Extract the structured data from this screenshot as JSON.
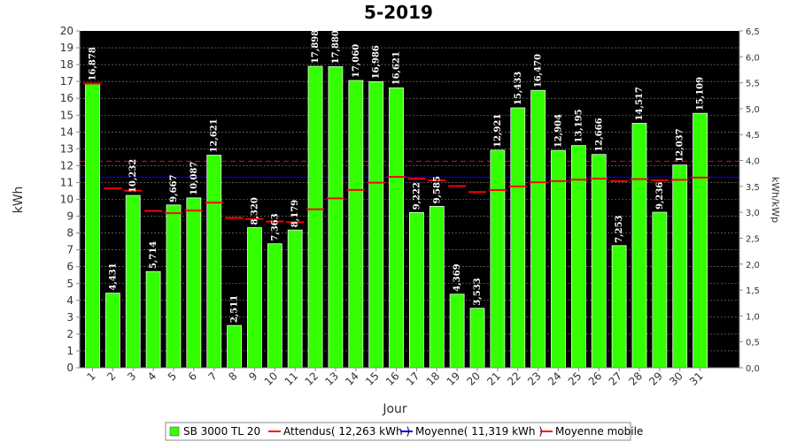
{
  "chart_data": {
    "type": "bar",
    "title": "5-2019",
    "xlabel": "Jour",
    "ylabel": "kWh",
    "y2label": "kWh/kWp",
    "ylim": [
      0,
      20
    ],
    "y2lim": [
      0,
      6.5
    ],
    "yticks": [
      "0",
      "1",
      "2",
      "3",
      "4",
      "5",
      "6",
      "7",
      "8",
      "9",
      "10",
      "11",
      "12",
      "13",
      "14",
      "15",
      "16",
      "17",
      "18",
      "19",
      "20"
    ],
    "y2ticks": [
      "0,0",
      "0,5",
      "1,0",
      "1,5",
      "2,0",
      "2,5",
      "3,0",
      "3,5",
      "4,0",
      "4,5",
      "5,0",
      "5,5",
      "6,0",
      "6,5"
    ],
    "grid": true,
    "legend_position": "bottom",
    "categories": [
      "1",
      "2",
      "3",
      "4",
      "5",
      "6",
      "7",
      "8",
      "9",
      "10",
      "11",
      "12",
      "13",
      "14",
      "15",
      "16",
      "17",
      "18",
      "19",
      "20",
      "21",
      "22",
      "23",
      "24",
      "25",
      "26",
      "27",
      "28",
      "29",
      "30",
      "31"
    ],
    "series": [
      {
        "name": "SB 3000 TL 20",
        "color": "#33ff00",
        "values": [
          16.878,
          4.431,
          10.232,
          5.714,
          9.667,
          10.087,
          12.621,
          2.511,
          8.32,
          7.363,
          8.179,
          17.898,
          17.88,
          17.06,
          16.986,
          16.621,
          9.222,
          9.585,
          4.369,
          3.533,
          12.921,
          15.433,
          16.47,
          12.904,
          13.195,
          12.666,
          7.253,
          14.517,
          9.236,
          12.037,
          15.109
        ],
        "labels": [
          "16,878",
          "4,431",
          "10,232",
          "5,714",
          "9,667",
          "10,087",
          "12,621",
          "2,511",
          "8,320",
          "7,363",
          "8,179",
          "17,898",
          "17,880",
          "17,060",
          "16,986",
          "16,621",
          "9,222",
          "9,585",
          "4,369",
          "3,533",
          "12,921",
          "15,433",
          "16,470",
          "12,904",
          "13,195",
          "12,666",
          "7,253",
          "14,517",
          "9,236",
          "12,037",
          "15,109"
        ]
      },
      {
        "name": "Moyenne mobile",
        "color": "#ff0000",
        "values": [
          16.878,
          10.65,
          10.51,
          9.31,
          9.18,
          9.33,
          9.8,
          8.89,
          8.83,
          8.68,
          8.64,
          9.41,
          10.06,
          10.56,
          10.99,
          11.34,
          11.22,
          11.13,
          10.79,
          10.43,
          10.55,
          10.77,
          11.01,
          11.08,
          11.17,
          11.23,
          11.08,
          11.2,
          11.13,
          11.16,
          11.29
        ]
      }
    ],
    "reference_lines": [
      {
        "name": "Attendus( 12,263 kWh )",
        "value": 12.263,
        "color": "#ff0000",
        "style": "dashed"
      },
      {
        "name": "Moyenne( 11,319 kWh )",
        "value": 11.319,
        "color": "#0000ff",
        "style": "solid"
      }
    ]
  }
}
